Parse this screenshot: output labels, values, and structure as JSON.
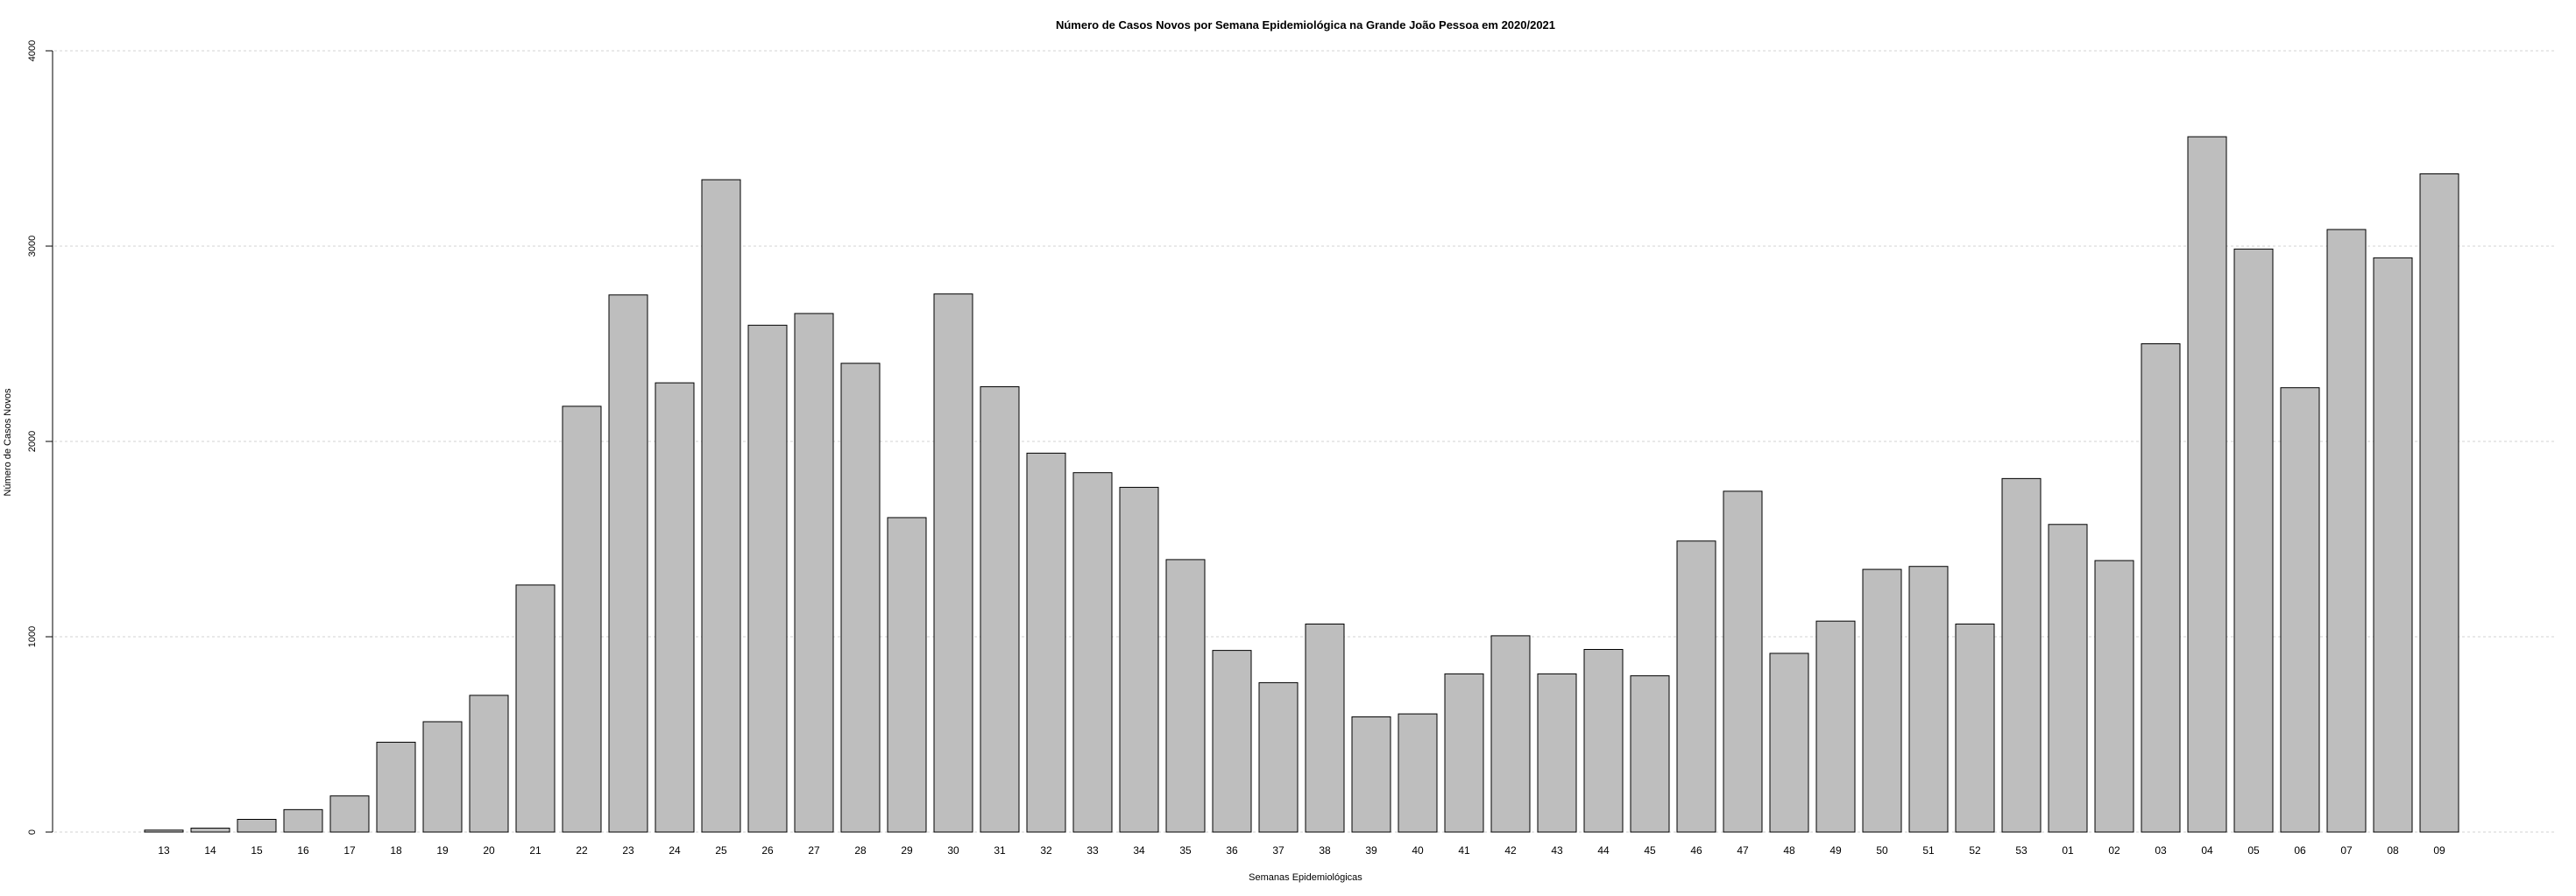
{
  "chart_data": {
    "type": "bar",
    "title": "Número de Casos Novos por Semana Epidemiológica na Grande João Pessoa em 2020/2021",
    "xlabel": "Semanas Epidemiológicas",
    "ylabel": "Número de Casos Novos",
    "ylim": [
      0,
      4000
    ],
    "yticks": [
      "0",
      "1000",
      "2000",
      "3000",
      "4000"
    ],
    "grid": true,
    "bar_color": "#bebebe",
    "categories": [
      "13",
      "14",
      "15",
      "16",
      "17",
      "18",
      "19",
      "20",
      "21",
      "22",
      "23",
      "24",
      "25",
      "26",
      "27",
      "28",
      "29",
      "30",
      "31",
      "32",
      "33",
      "34",
      "35",
      "36",
      "37",
      "38",
      "39",
      "40",
      "41",
      "42",
      "43",
      "44",
      "45",
      "46",
      "47",
      "48",
      "49",
      "50",
      "51",
      "52",
      "53",
      "01",
      "02",
      "03",
      "04",
      "05",
      "06",
      "07",
      "08",
      "09"
    ],
    "values": [
      10,
      20,
      65,
      115,
      185,
      460,
      565,
      700,
      1265,
      2180,
      2750,
      2300,
      3340,
      2595,
      2655,
      2400,
      1610,
      2755,
      2280,
      1940,
      1840,
      1765,
      1395,
      930,
      765,
      1065,
      590,
      605,
      810,
      1005,
      810,
      935,
      800,
      1490,
      1745,
      915,
      1080,
      1345,
      1360,
      1065,
      1810,
      1575,
      1390,
      2500,
      3560,
      2985,
      2275,
      3085,
      2940,
      3370
    ]
  }
}
